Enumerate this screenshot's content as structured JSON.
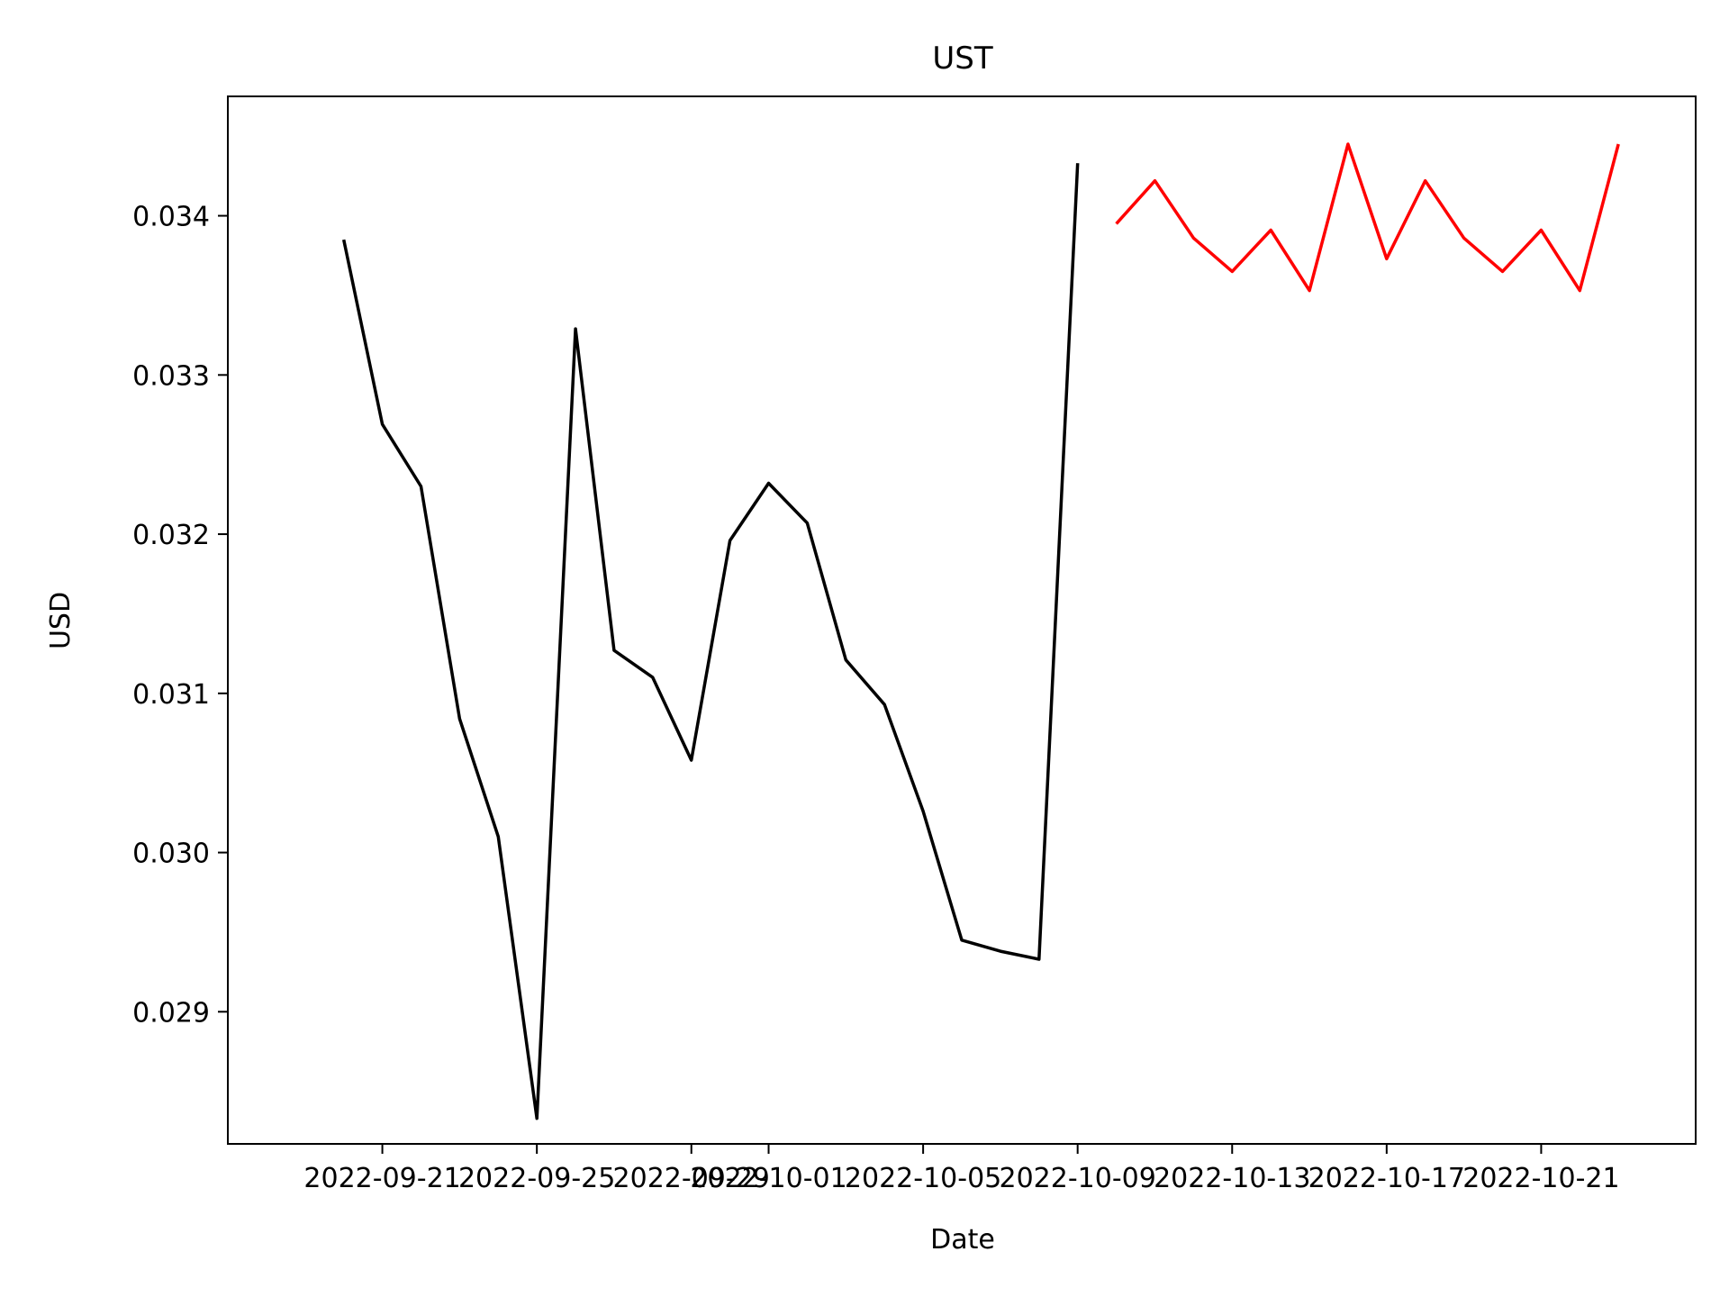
{
  "chart_data": {
    "type": "line",
    "title": "UST",
    "xlabel": "Date",
    "ylabel": "USD",
    "x_tick_labels": [
      "2022-09-21",
      "2022-09-25",
      "2022-09-29",
      "2022-10-01",
      "2022-10-05",
      "2022-10-09",
      "2022-10-13",
      "2022-10-17",
      "2022-10-21"
    ],
    "y_tick_labels": [
      "0.029",
      "0.030",
      "0.031",
      "0.032",
      "0.033",
      "0.034"
    ],
    "xlim": [
      "2022-09-17",
      "2022-10-25"
    ],
    "ylim": [
      0.02817,
      0.03475
    ],
    "grid": false,
    "series": [
      {
        "color": "#000000",
        "x": [
          "2022-09-20",
          "2022-09-21",
          "2022-09-22",
          "2022-09-23",
          "2022-09-24",
          "2022-09-25",
          "2022-09-26",
          "2022-09-27",
          "2022-09-28",
          "2022-09-29",
          "2022-09-30",
          "2022-10-01",
          "2022-10-02",
          "2022-10-03",
          "2022-10-04",
          "2022-10-05",
          "2022-10-06",
          "2022-10-07",
          "2022-10-08",
          "2022-10-09"
        ],
        "y": [
          0.03385,
          0.03269,
          0.0323,
          0.03084,
          0.0301,
          0.02833,
          0.03329,
          0.03127,
          0.0311,
          0.03058,
          0.03196,
          0.03232,
          0.03207,
          0.03121,
          0.03093,
          0.03026,
          0.02945,
          0.02938,
          0.02933,
          0.03433
        ]
      },
      {
        "color": "#ff0000",
        "x": [
          "2022-10-10",
          "2022-10-11",
          "2022-10-12",
          "2022-10-13",
          "2022-10-14",
          "2022-10-15",
          "2022-10-16",
          "2022-10-17",
          "2022-10-18",
          "2022-10-19",
          "2022-10-20",
          "2022-10-21",
          "2022-10-22",
          "2022-10-23"
        ],
        "y": [
          0.03395,
          0.03422,
          0.03386,
          0.03365,
          0.03391,
          0.03353,
          0.03445,
          0.03373,
          0.03422,
          0.03386,
          0.03365,
          0.03391,
          0.03353,
          0.03445
        ]
      }
    ]
  }
}
